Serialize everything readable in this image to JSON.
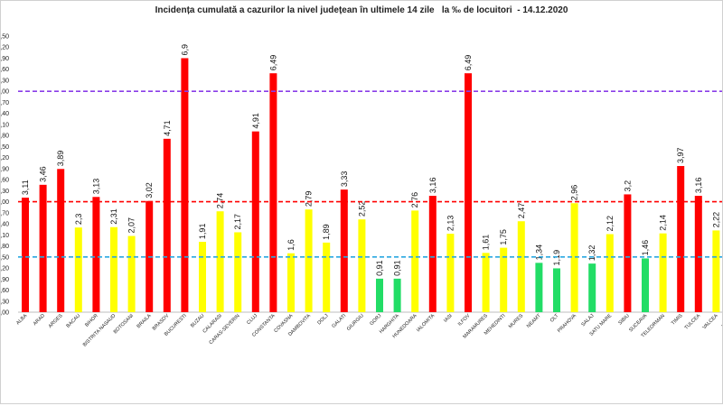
{
  "chart_data": {
    "type": "bar",
    "title": "Incidența cumulată a cazurilor la nivel județean în ultimele 14 zile   la ‰ de locuitori  - 14.12.2020",
    "categories": [
      "ALBA",
      "ARAD",
      "ARGES",
      "BACAU",
      "BIHOR",
      "BISTRITA NASAUD",
      "BOTOSANI",
      "BRAILA",
      "BRASOV",
      "BUCURESTI",
      "BUZAU",
      "CALARASI",
      "CARAS-SEVERIN",
      "CLUJ",
      "CONSTANTA",
      "COVASNA",
      "DAMBOVITA",
      "DOLJ",
      "GALATI",
      "GIURGIU",
      "GORJ",
      "HARGHITA",
      "HUNEDOARA",
      "IALOMITA",
      "IASI",
      "ILFOV",
      "MARAMURES",
      "MEHEDINTI",
      "MURES",
      "NEAMT",
      "OLT",
      "PRAHOVA",
      "SALAJ",
      "SATU MARE",
      "SIBIU",
      "SUCEAVA",
      "TELEORMAN",
      "TIMIS",
      "TULCEA",
      "VALCEA",
      "VASLUI"
    ],
    "values": [
      3.11,
      3.46,
      3.89,
      2.3,
      3.13,
      2.31,
      2.07,
      3.02,
      4.71,
      6.9,
      1.91,
      2.74,
      2.17,
      4.91,
      6.49,
      1.6,
      2.79,
      1.89,
      3.33,
      2.52,
      0.91,
      0.91,
      2.76,
      3.16,
      2.13,
      6.49,
      1.61,
      1.75,
      2.47,
      1.34,
      1.19,
      2.96,
      1.32,
      2.12,
      3.2,
      1.46,
      2.14,
      3.97,
      3.16,
      2.22,
      2.1
    ],
    "value_labels": [
      "3,11",
      "3,46",
      "3,89",
      "2,3",
      "3,13",
      "2,31",
      "2,07",
      "3,02",
      "4,71",
      "6,9",
      "1,91",
      "2,74",
      "2,17",
      "4,91",
      "6,49",
      "1,6",
      "2,79",
      "1,89",
      "3,33",
      "2,52",
      "0,91",
      "0,91",
      "2,76",
      "3,16",
      "2,13",
      "6,49",
      "1,61",
      "1,75",
      "2,47",
      "1,34",
      "1,19",
      "2,96",
      "1,32",
      "2,12",
      "3,2",
      "1,46",
      "2,14",
      "3,97",
      "3,16",
      "2,22",
      "2,1"
    ],
    "colors": {
      "red": "#ff0000",
      "yellow": "#ffff00",
      "green": "#22dd66",
      "line_purple": "#8a3ee8",
      "line_red": "#ff0000",
      "line_blue": "#29a8e0"
    },
    "thresholds": [
      {
        "value": 1.5,
        "style": "dashed",
        "color": "line_blue"
      },
      {
        "value": 3.0,
        "style": "dashed",
        "color": "line_red"
      },
      {
        "value": 6.0,
        "style": "dashed",
        "color": "line_purple"
      }
    ],
    "ylim": [
      0,
      7.5
    ],
    "yticks": [
      0,
      0.3,
      0.6,
      0.9,
      1.2,
      1.5,
      1.8,
      2.1,
      2.4,
      2.7,
      3.0,
      3.3,
      3.6,
      3.9,
      4.2,
      4.5,
      4.8,
      5.1,
      5.4,
      5.7,
      6.0,
      6.3,
      6.6,
      6.9,
      7.2,
      7.5
    ],
    "ytick_labels": [
      "0,00",
      "0,30",
      "0,60",
      "0,90",
      "1,20",
      "1,50",
      "1,80",
      "2,10",
      "2,40",
      "2,70",
      "3,00",
      "3,30",
      "3,60",
      "3,90",
      "4,20",
      "4,50",
      "4,80",
      "5,10",
      "5,40",
      "5,70",
      "6,00",
      "6,30",
      "6,60",
      "6,90",
      "7,20",
      "7,50"
    ],
    "grid": false,
    "legend": "none"
  }
}
